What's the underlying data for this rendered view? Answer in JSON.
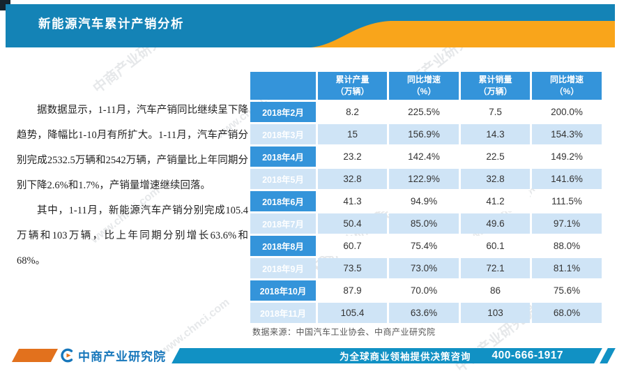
{
  "header": {
    "title": "新能源汽车累计产销分析"
  },
  "paragraphs": [
    "据数据显示，1-11月，汽车产销同比继续呈下降趋势，降幅比1-10月有所扩大。1-11月，汽车产销分别完成2532.5万辆和2542万辆，产销量比上年同期分别下降2.6%和1.7%，产销量增速继续回落。",
    "其中，1-11月，新能源汽车产销分别完成105.4万辆和103万辆，比上年同期分别增长63.6%和68%。"
  ],
  "table": {
    "columns": [
      {
        "label": "累计产量",
        "unit": "（万辆）"
      },
      {
        "label": "同比增速",
        "unit": "（%）"
      },
      {
        "label": "累计销量",
        "unit": "（万辆）"
      },
      {
        "label": "同比增速",
        "unit": "（%）"
      }
    ],
    "rows": [
      {
        "month": "2018年2月",
        "production": "8.2",
        "prod_growth": "225.5%",
        "sales": "7.5",
        "sales_growth": "200.0%"
      },
      {
        "month": "2018年3月",
        "production": "15",
        "prod_growth": "156.9%",
        "sales": "14.3",
        "sales_growth": "154.3%"
      },
      {
        "month": "2018年4月",
        "production": "23.2",
        "prod_growth": "142.4%",
        "sales": "22.5",
        "sales_growth": "149.2%"
      },
      {
        "month": "2018年5月",
        "production": "32.8",
        "prod_growth": "122.9%",
        "sales": "32.8",
        "sales_growth": "141.6%"
      },
      {
        "month": "2018年6月",
        "production": "41.3",
        "prod_growth": "94.9%",
        "sales": "41.2",
        "sales_growth": "111.5%"
      },
      {
        "month": "2018年7月",
        "production": "50.4",
        "prod_growth": "85.0%",
        "sales": "49.6",
        "sales_growth": "97.1%"
      },
      {
        "month": "2018年8月",
        "production": "60.7",
        "prod_growth": "75.4%",
        "sales": "60.1",
        "sales_growth": "88.0%"
      },
      {
        "month": "2018年9月",
        "production": "73.5",
        "prod_growth": "73.0%",
        "sales": "72.1",
        "sales_growth": "81.1%"
      },
      {
        "month": "2018年10月",
        "production": "87.9",
        "prod_growth": "70.0%",
        "sales": "86",
        "sales_growth": "75.6%"
      },
      {
        "month": "2018年11月",
        "production": "105.4",
        "prod_growth": "63.6%",
        "sales": "103",
        "sales_growth": "68.0%"
      }
    ],
    "source": "数据来源：中国汽车工业协会、中商产业研究院"
  },
  "footer": {
    "logo_text": "中商产业研究院",
    "slogan": "为全球商业领袖提供决策咨询",
    "phone": "400-666-1917"
  },
  "watermark": {
    "text1": "中商产业研究院",
    "text2": "www.chnci.com"
  },
  "colors": {
    "title_bar_blue": "#1483b6",
    "accent_orange": "#f9a51b",
    "table_blue": "#3494da",
    "row_alt_blue": "#cfe4f6",
    "footer_blue": "#1191c4",
    "footer_orange": "#e2711d",
    "logo_blue": "#1777bb",
    "corner_dark": "#15242e"
  }
}
